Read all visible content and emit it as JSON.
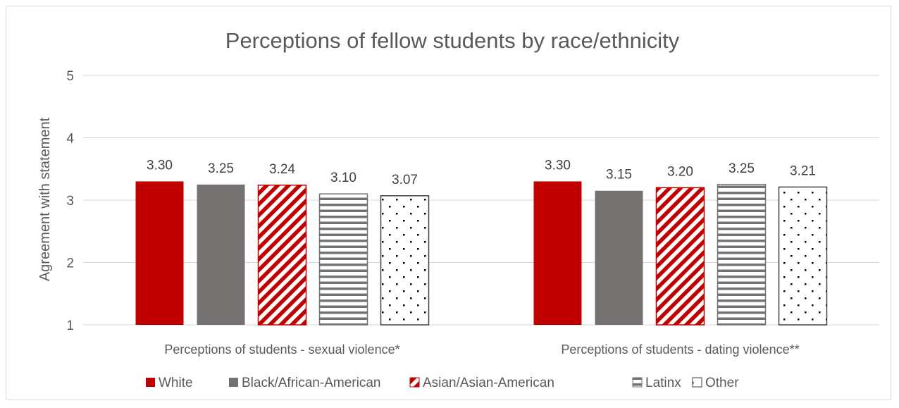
{
  "chart_data": {
    "type": "bar",
    "title": "Perceptions of fellow students by race/ethnicity",
    "xlabel": "",
    "ylabel": "Agreement with statement",
    "ylim": [
      1,
      5
    ],
    "yticks": [
      "1",
      "2",
      "3",
      "4",
      "5"
    ],
    "grid": true,
    "legend_position": "bottom",
    "categories": [
      "Perceptions of students - sexual violence*",
      "Perceptions of students - dating violence**"
    ],
    "series": [
      {
        "name": "White",
        "values": [
          3.3,
          3.3
        ],
        "labels": [
          "3.30",
          "3.30"
        ],
        "color": "#c00000",
        "pattern": "solid"
      },
      {
        "name": "Black/African-American",
        "values": [
          3.25,
          3.15
        ],
        "labels": [
          "3.25",
          "3.15"
        ],
        "color": "#767171",
        "pattern": "solid"
      },
      {
        "name": "Asian/Asian-American",
        "values": [
          3.24,
          3.2
        ],
        "labels": [
          "3.24",
          "3.20"
        ],
        "color": "#c00000",
        "pattern": "diagonal-stripes"
      },
      {
        "name": "Latinx",
        "values": [
          3.1,
          3.25
        ],
        "labels": [
          "3.10",
          "3.25"
        ],
        "color": "#767171",
        "pattern": "horizontal-stripes"
      },
      {
        "name": "Other",
        "values": [
          3.07,
          3.21
        ],
        "labels": [
          "3.07",
          "3.21"
        ],
        "color": "#404040",
        "pattern": "dots"
      }
    ]
  }
}
